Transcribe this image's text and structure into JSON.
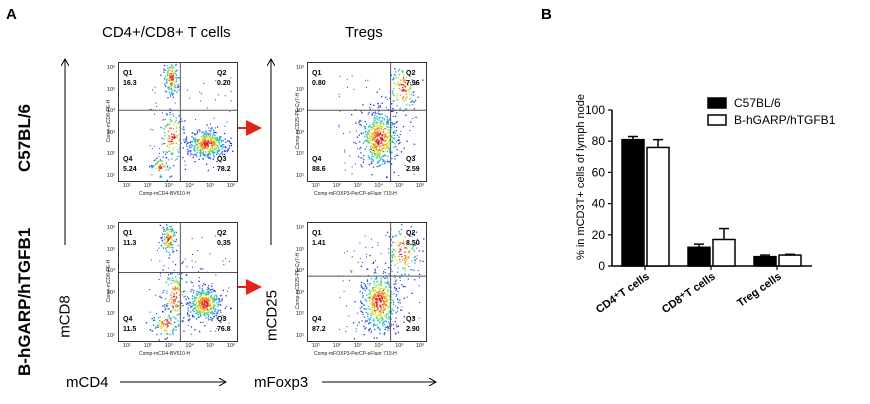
{
  "panel_a": {
    "letter": "A",
    "header_left": "CD4+/CD8+ T cells",
    "header_right": "Tregs",
    "row_labels": [
      "C57BL/6",
      "B-hGARP/hTGFB1"
    ],
    "y_axis_left": "mCD8",
    "x_axis_left": "mCD4",
    "y_axis_right": "mCD25",
    "x_axis_right": "mFoxp3",
    "plot_ylabel_left": "Comp-mCD8-PE-H",
    "plot_xlabel_left": "Comp-mCD4-BV510-H",
    "plot_ylabel_right": "Comp-mCD25-PE-Cy7-H",
    "plot_xlabel_right": "Comp-mFOXP3-PerCP-eFluor 710-H",
    "x_ticks": [
      "10¹",
      "10²",
      "10³",
      "10⁴",
      "10⁵",
      "10⁶"
    ],
    "y_ticks": [
      "10⁶",
      "10⁵",
      "10⁴",
      "10³",
      "10²",
      "10¹"
    ],
    "quadrant_names": [
      "Q1",
      "Q2",
      "Q3",
      "Q4"
    ],
    "plots": [
      {
        "q1": "16.3",
        "q2": "0.20",
        "q3": "78.2",
        "q4": "5.24"
      },
      {
        "q1": "0.80",
        "q2": "7.96",
        "q3": "2.59",
        "q4": "88.6"
      },
      {
        "q1": "11.3",
        "q2": "0.35",
        "q3": "76.8",
        "q4": "11.5"
      },
      {
        "q1": "1.41",
        "q2": "8.50",
        "q3": "2.90",
        "q4": "87.2"
      }
    ],
    "arrow_color": "#e2231a"
  },
  "panel_b": {
    "letter": "B"
  },
  "chart_data": {
    "type": "bar",
    "categories": [
      "CD4⁺T cells",
      "CD8⁺T cells",
      "Treg cells"
    ],
    "series": [
      {
        "name": "C57BL/6",
        "values": [
          81,
          12,
          6
        ],
        "errors": [
          2,
          2,
          1
        ],
        "color": "#000000"
      },
      {
        "name": "B-hGARP/hTGFB1",
        "values": [
          76,
          17,
          7
        ],
        "errors": [
          5,
          7,
          0.5
        ],
        "color": "#ffffff"
      }
    ],
    "ylabel": "% in mCD3T+ cells of lymph node",
    "xlabel": "",
    "ylim": [
      0,
      100
    ],
    "yticks": [
      "0",
      "20",
      "40",
      "60",
      "80",
      "100"
    ],
    "legend_position": "top-right"
  }
}
